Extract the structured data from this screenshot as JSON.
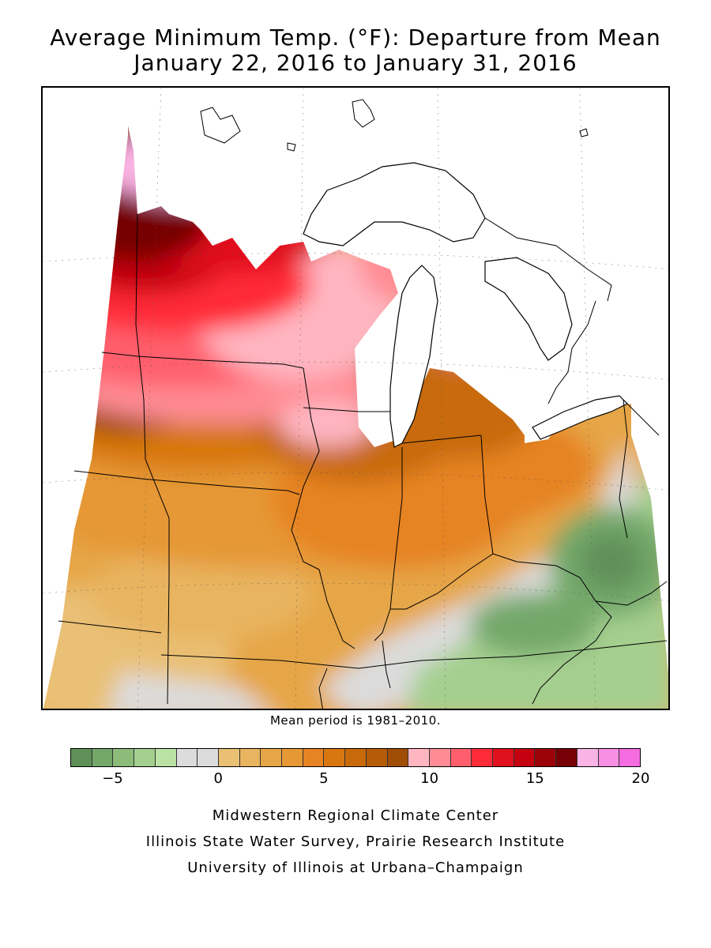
{
  "title": {
    "line1": "Average Minimum Temp. (°F): Departure from Mean",
    "line2": "January 22, 2016 to January 31, 2016"
  },
  "note": "Mean period is 1981–2010.",
  "legend": {
    "colors": [
      "#5f9058",
      "#73a86a",
      "#8dbc7a",
      "#a4cf8f",
      "#b9e2a4",
      "#dcdcdc",
      "#dcdcdc",
      "#e9c074",
      "#e8b460",
      "#e6a647",
      "#e59834",
      "#e68322",
      "#d8770f",
      "#c86a0a",
      "#b65b07",
      "#a04d05",
      "#ffb6c1",
      "#ff8c94",
      "#ff5f6c",
      "#ff2b38",
      "#e0101e",
      "#c40010",
      "#9c0009",
      "#760006",
      "#f9b3e4",
      "#f78fe2",
      "#f46cdf"
    ],
    "tick_labels": [
      "−5",
      "0",
      "5",
      "10",
      "15",
      "20"
    ],
    "tick_values": [
      -5,
      0,
      5,
      10,
      15,
      20
    ],
    "range": [
      -7,
      20
    ]
  },
  "credits": [
    "Midwestern Regional Climate Center",
    "Illinois State Water Survey, Prairie Research Institute",
    "University of Illinois at Urbana–Champaign"
  ]
}
